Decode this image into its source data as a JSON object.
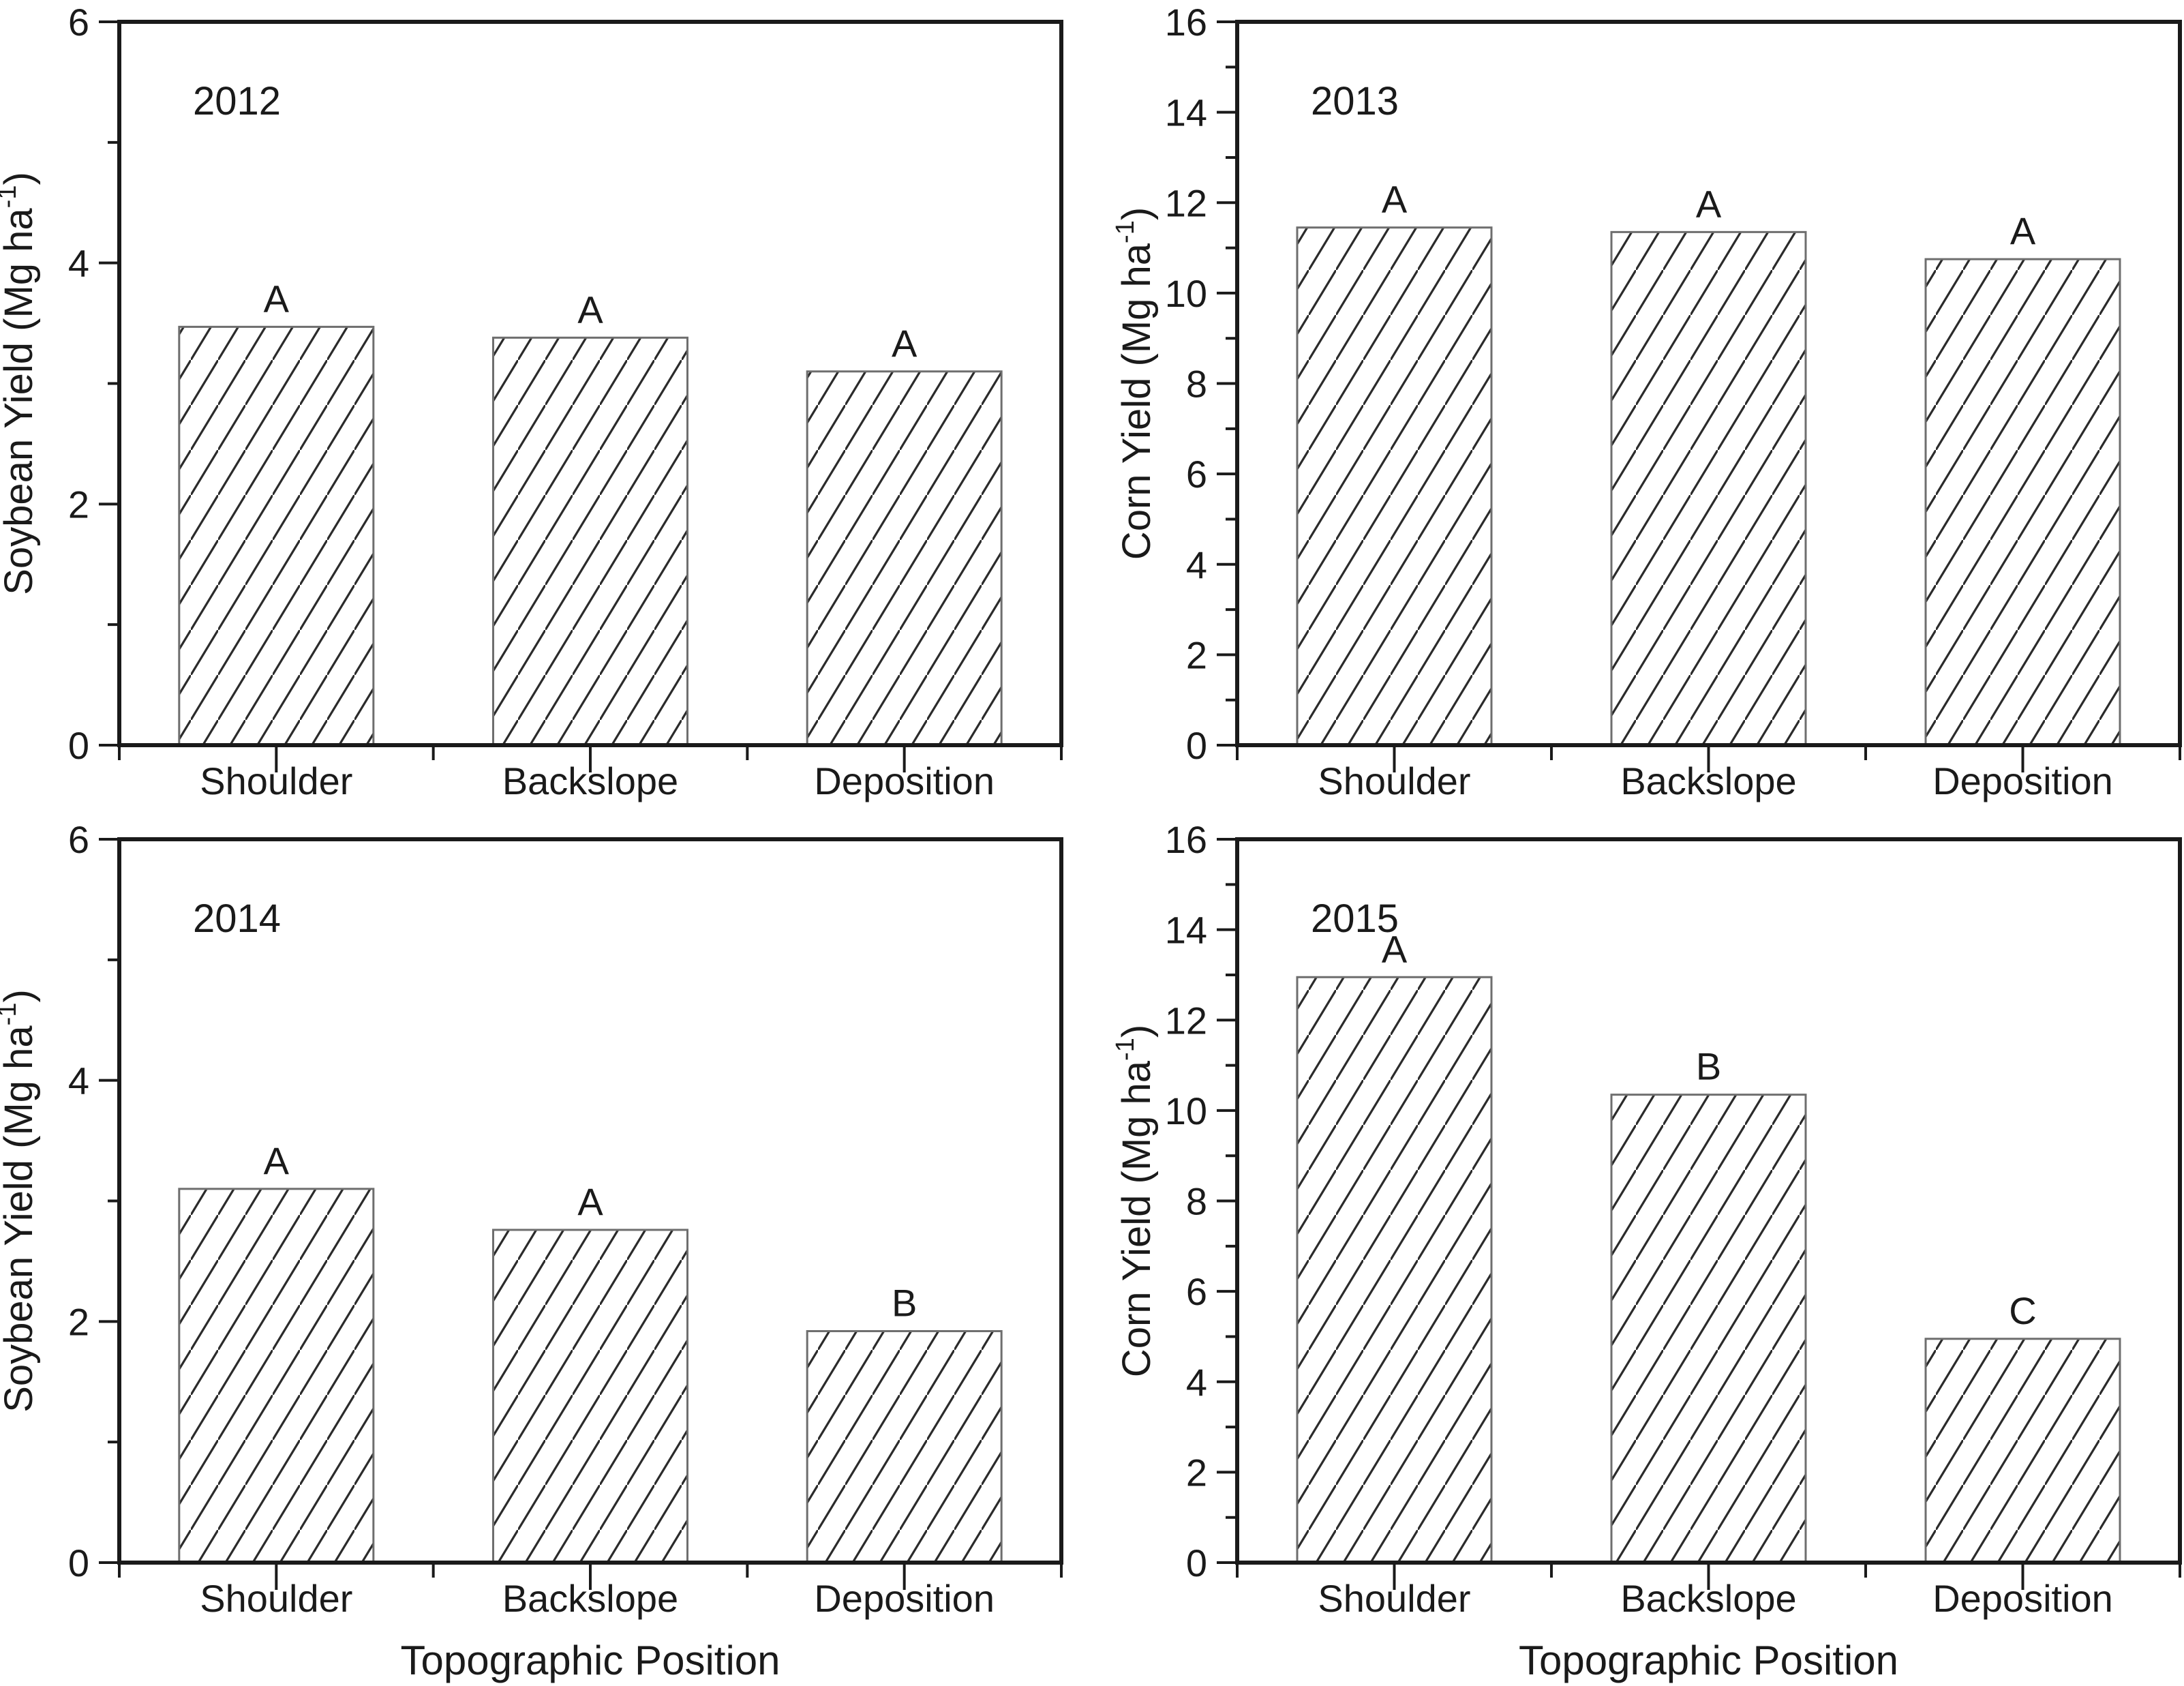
{
  "figure": {
    "background": "#ffffff",
    "text_color": "#1a1a1a",
    "axis_color": "#1a1a1a",
    "hatch_color": "#2b2b2b",
    "bar_border_color": "#6e6e6e",
    "bar_fill": "#ffffff",
    "shared_xlabel": "Topographic Position"
  },
  "chart_data": [
    {
      "type": "bar",
      "position": "top-left",
      "title": "2012",
      "ylabel": {
        "main": "Soybean Yield (Mg ha",
        "sup": "-1",
        "end": ")"
      },
      "xlabel": "",
      "categories": [
        "Shoulder",
        "Backslope",
        "Deposition"
      ],
      "values": [
        3.47,
        3.38,
        3.1
      ],
      "letters": [
        "A",
        "A",
        "A"
      ],
      "ylim": [
        0,
        6
      ],
      "yticks_major": [
        0,
        2,
        4,
        6
      ],
      "yticks_minor": [
        1,
        3,
        5
      ],
      "grid": false,
      "legend": "none",
      "hatch": "diagonal-forward"
    },
    {
      "type": "bar",
      "position": "top-right",
      "title": "2013",
      "ylabel": {
        "main": "Corn Yield (Mg ha",
        "sup": "-1",
        "end": ")"
      },
      "xlabel": "",
      "categories": [
        "Shoulder",
        "Backslope",
        "Deposition"
      ],
      "values": [
        11.45,
        11.35,
        10.75
      ],
      "letters": [
        "A",
        "A",
        "A"
      ],
      "ylim": [
        0,
        16
      ],
      "yticks_major": [
        0,
        2,
        4,
        6,
        8,
        10,
        12,
        14,
        16
      ],
      "yticks_minor": [
        1,
        3,
        5,
        7,
        9,
        11,
        13,
        15
      ],
      "grid": false,
      "legend": "none",
      "hatch": "diagonal-forward"
    },
    {
      "type": "bar",
      "position": "bottom-left",
      "title": "2014",
      "ylabel": {
        "main": "Soybean Yield (Mg ha",
        "sup": "-1",
        "end": ")"
      },
      "xlabel": "Topographic Position",
      "categories": [
        "Shoulder",
        "Backslope",
        "Deposition"
      ],
      "values": [
        3.1,
        2.76,
        1.92
      ],
      "letters": [
        "A",
        "A",
        "B"
      ],
      "ylim": [
        0,
        6
      ],
      "yticks_major": [
        0,
        2,
        4,
        6
      ],
      "yticks_minor": [
        1,
        3,
        5
      ],
      "grid": false,
      "legend": "none",
      "hatch": "diagonal-forward"
    },
    {
      "type": "bar",
      "position": "bottom-right",
      "title": "2015",
      "ylabel": {
        "main": "Corn Yield (Mg ha",
        "sup": "-1",
        "end": ")"
      },
      "xlabel": "Topographic Position",
      "categories": [
        "Shoulder",
        "Backslope",
        "Deposition"
      ],
      "values": [
        12.95,
        10.35,
        4.95
      ],
      "letters": [
        "A",
        "B",
        "C"
      ],
      "ylim": [
        0,
        16
      ],
      "yticks_major": [
        0,
        2,
        4,
        6,
        8,
        10,
        12,
        14,
        16
      ],
      "yticks_minor": [
        1,
        3,
        5,
        7,
        9,
        11,
        13,
        15
      ],
      "grid": false,
      "legend": "none",
      "hatch": "diagonal-forward"
    }
  ]
}
